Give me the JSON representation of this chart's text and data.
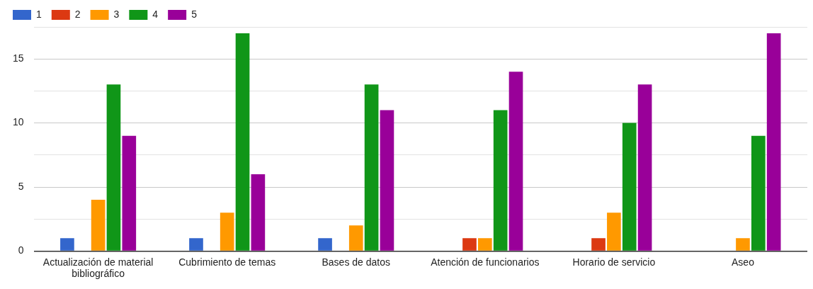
{
  "chart_data": {
    "type": "bar",
    "categories": [
      "Actualización de material bibliográfico",
      "Cubrimiento de temas",
      "Bases de datos",
      "Atención de funcionarios",
      "Horario de servicio",
      "Aseo"
    ],
    "series": [
      {
        "name": "1",
        "color": "#3366cc",
        "values": [
          1,
          1,
          1,
          0,
          0,
          0
        ]
      },
      {
        "name": "2",
        "color": "#dc3912",
        "values": [
          0,
          0,
          0,
          1,
          1,
          0
        ]
      },
      {
        "name": "3",
        "color": "#ff9900",
        "values": [
          4,
          3,
          2,
          1,
          3,
          1
        ]
      },
      {
        "name": "4",
        "color": "#109618",
        "values": [
          13,
          17,
          13,
          11,
          10,
          9
        ]
      },
      {
        "name": "5",
        "color": "#990099",
        "values": [
          9,
          6,
          11,
          14,
          13,
          17
        ]
      }
    ],
    "ylim": [
      0,
      17.5
    ],
    "yticks": [
      0,
      {
        "value": 2.5,
        "label": null
      },
      5,
      {
        "value": 7.5,
        "label": null
      },
      10,
      {
        "value": 12.5,
        "label": null
      },
      15,
      {
        "value": 17.5,
        "label": null
      }
    ],
    "grid": "y",
    "legend": "top left"
  }
}
